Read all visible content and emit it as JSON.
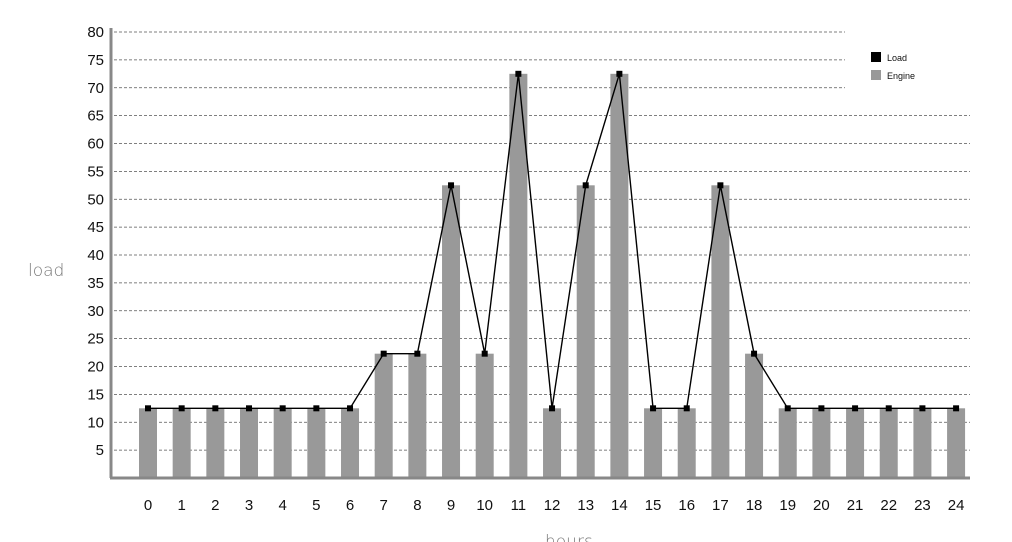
{
  "chart_data": {
    "type": "bar",
    "xlabel": "hours",
    "ylabel": "load",
    "ylim": [
      0,
      80
    ],
    "yticks": [
      5,
      10,
      15,
      20,
      25,
      30,
      35,
      40,
      45,
      50,
      55,
      60,
      65,
      70,
      75,
      80
    ],
    "categories": [
      "0",
      "1",
      "2",
      "3",
      "4",
      "5",
      "6",
      "7",
      "8",
      "9",
      "10",
      "11",
      "12",
      "13",
      "14",
      "15",
      "16",
      "17",
      "18",
      "19",
      "20",
      "21",
      "22",
      "23",
      "24"
    ],
    "grid": true,
    "legend_position": "top-right",
    "series": [
      {
        "name": "Load",
        "kind": "line",
        "color": "#000000",
        "values": [
          12.5,
          12.5,
          12.5,
          12.5,
          12.5,
          12.5,
          12.5,
          22.3,
          22.3,
          52.5,
          22.3,
          72.5,
          12.5,
          52.5,
          72.5,
          12.5,
          12.5,
          52.5,
          22.3,
          12.5,
          12.5,
          12.5,
          12.5,
          12.5,
          12.5
        ]
      },
      {
        "name": "Engine",
        "kind": "bar",
        "color": "#999999",
        "values": [
          12.5,
          12.5,
          12.5,
          12.5,
          12.5,
          12.5,
          12.5,
          22.3,
          22.3,
          52.5,
          22.3,
          72.5,
          12.5,
          52.5,
          72.5,
          12.5,
          12.5,
          52.5,
          22.3,
          12.5,
          12.5,
          12.5,
          12.5,
          12.5,
          12.5
        ]
      }
    ]
  }
}
